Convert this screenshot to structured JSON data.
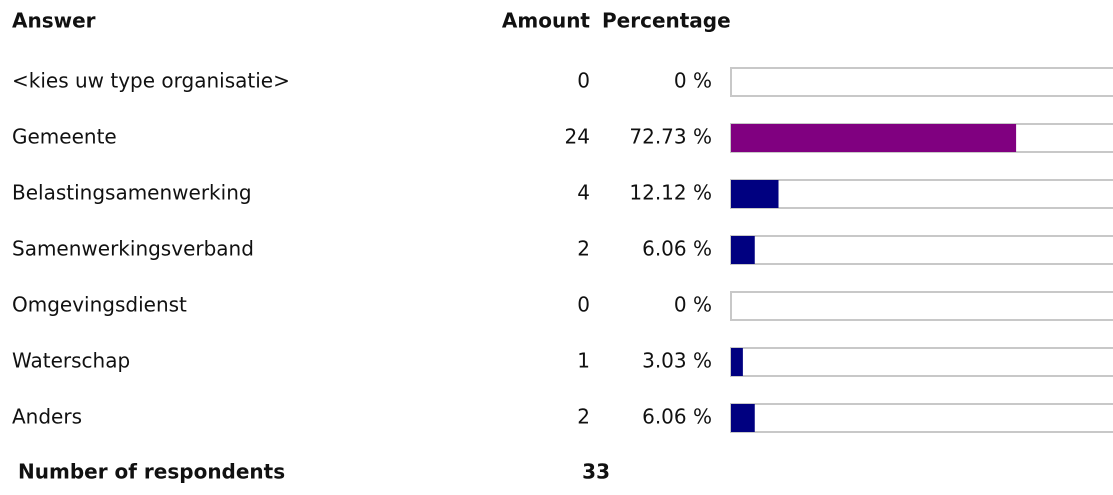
{
  "chart_data": {
    "type": "bar",
    "orientation": "horizontal",
    "headers": [
      "Answer",
      "Amount",
      "Percentage"
    ],
    "categories": [
      "<kies uw type organisatie>",
      "Gemeente",
      "Belastingsamenwerking",
      "Samenwerkingsverband",
      "Omgevingsdienst",
      "Waterschap",
      "Anders"
    ],
    "amounts": [
      0,
      24,
      4,
      2,
      0,
      1,
      2
    ],
    "values": [
      0,
      72.73,
      12.12,
      6.06,
      0,
      3.03,
      6.06
    ],
    "value_labels": [
      "0 %",
      "72.73 %",
      "12.12 %",
      "6.06 %",
      "0 %",
      "3.03 %",
      "6.06 %"
    ],
    "colors": [
      "#000080",
      "#800080",
      "#000080",
      "#000080",
      "#000080",
      "#000080",
      "#000080"
    ],
    "xlim": [
      0,
      100
    ],
    "footer": {
      "label": "Number of respondents",
      "value": 33
    }
  }
}
